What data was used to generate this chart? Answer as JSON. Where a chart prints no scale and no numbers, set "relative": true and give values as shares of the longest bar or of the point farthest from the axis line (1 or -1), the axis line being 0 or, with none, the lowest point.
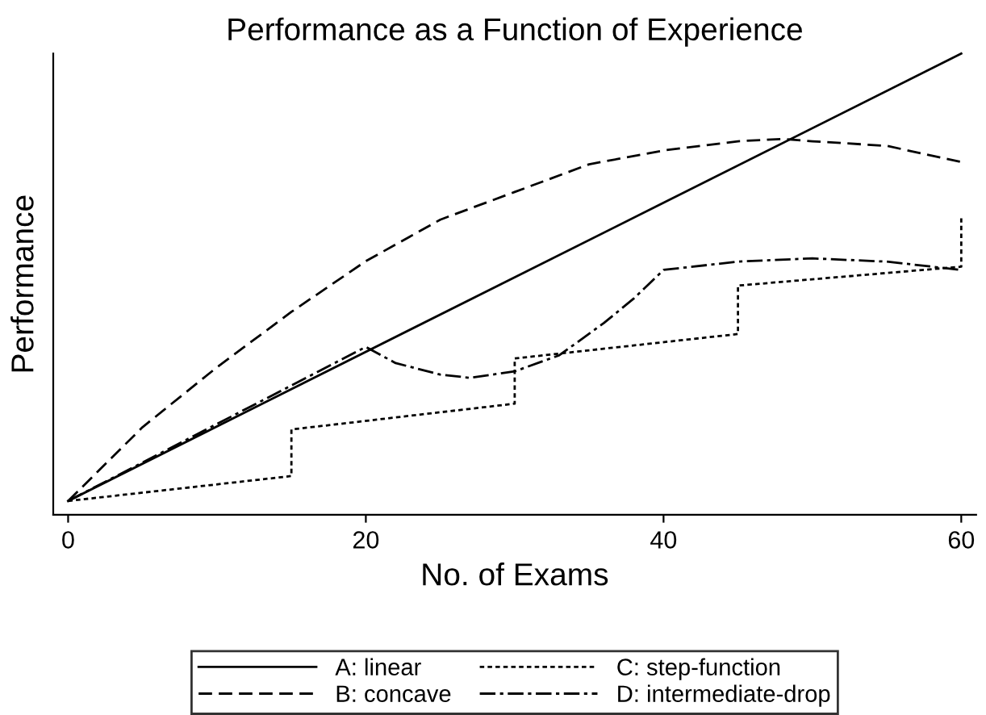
{
  "chart_data": {
    "type": "line",
    "title": "Performance as a Function of Experience",
    "xlabel": "No. of Exams",
    "ylabel": "Performance",
    "relative": true,
    "xlim": [
      -1,
      61
    ],
    "xticks": [
      0,
      20,
      40,
      60
    ],
    "grid": false,
    "legend": "bottom",
    "marker": "none",
    "series": [
      {
        "name": "A: linear",
        "color": "#000000",
        "line_style": "solid",
        "x": [
          0,
          60
        ],
        "values": [
          0.03,
          1.0
        ]
      },
      {
        "name": "B: concave",
        "color": "#000000",
        "line_style": "dashed",
        "x": [
          0,
          5,
          10,
          15,
          20,
          25,
          30,
          35,
          40,
          45,
          48,
          50,
          55,
          60
        ],
        "values": [
          0.03,
          0.19,
          0.32,
          0.44,
          0.55,
          0.64,
          0.7,
          0.76,
          0.79,
          0.81,
          0.815,
          0.81,
          0.8,
          0.765
        ]
      },
      {
        "name": "C: step-function",
        "color": "#000000",
        "line_style": "dotted",
        "x": [
          0,
          15,
          15,
          30,
          30,
          45,
          45,
          60,
          60
        ],
        "values": [
          0.03,
          0.084,
          0.185,
          0.241,
          0.339,
          0.392,
          0.497,
          0.538,
          0.643
        ]
      },
      {
        "name": "D: intermediate-drop",
        "color": "#000000",
        "line_style": "dashdot",
        "x": [
          0,
          20,
          22,
          25,
          27,
          30,
          33,
          36,
          38,
          40,
          45,
          50,
          55,
          60
        ],
        "values": [
          0.03,
          0.364,
          0.329,
          0.304,
          0.297,
          0.311,
          0.346,
          0.416,
          0.469,
          0.531,
          0.549,
          0.556,
          0.549,
          0.531
        ]
      }
    ]
  }
}
